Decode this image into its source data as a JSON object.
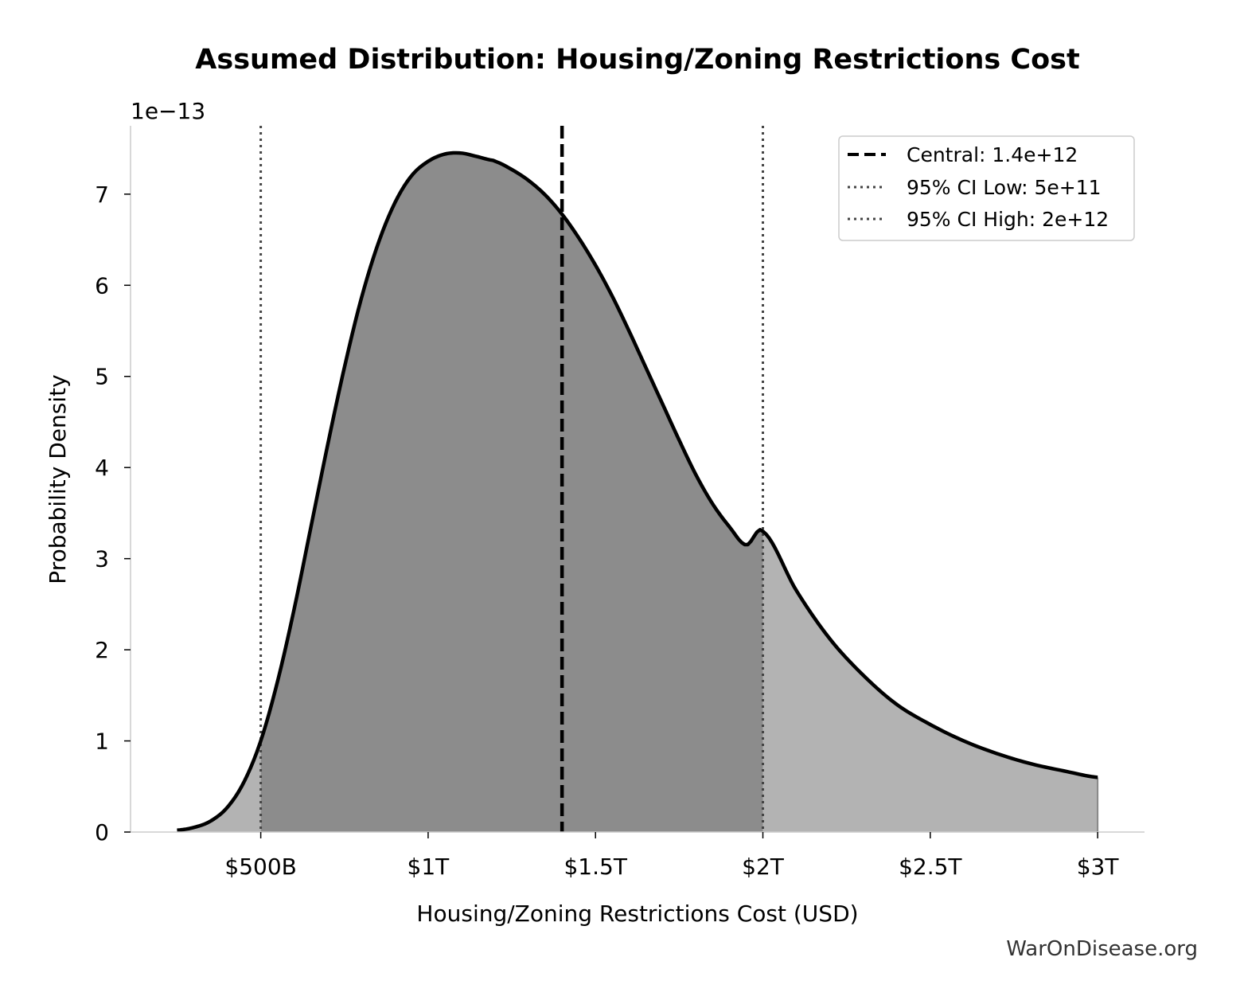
{
  "chart_data": {
    "type": "area",
    "title": "Assumed Distribution: Housing/Zoning Restrictions Cost",
    "xlabel": "Housing/Zoning Restrictions Cost (USD)",
    "ylabel": "Probability Density",
    "y_offset_label": "1e−13",
    "y_scale": 1e-13,
    "xlim": [
      111000000000,
      3140000000000
    ],
    "ylim": [
      0,
      7.75e-13
    ],
    "x_ticks": [
      {
        "value": 500000000000,
        "label": "$500B"
      },
      {
        "value": 1000000000000,
        "label": "$1T"
      },
      {
        "value": 1500000000000,
        "label": "$1.5T"
      },
      {
        "value": 2000000000000,
        "label": "$2T"
      },
      {
        "value": 2500000000000,
        "label": "$2.5T"
      },
      {
        "value": 3000000000000,
        "label": "$3T"
      }
    ],
    "y_ticks": [
      {
        "value": 0,
        "label": "0"
      },
      {
        "value": 1e-13,
        "label": "1"
      },
      {
        "value": 2e-13,
        "label": "2"
      },
      {
        "value": 3e-13,
        "label": "3"
      },
      {
        "value": 4e-13,
        "label": "4"
      },
      {
        "value": 5e-13,
        "label": "5"
      },
      {
        "value": 6e-13,
        "label": "6"
      },
      {
        "value": 7e-13,
        "label": "7"
      }
    ],
    "series": [
      {
        "x": [
          250000000000,
          300000000000,
          350000000000,
          400000000000,
          450000000000,
          500000000000,
          550000000000,
          600000000000,
          650000000000,
          700000000000,
          750000000000,
          800000000000,
          850000000000,
          900000000000,
          950000000000,
          1000000000000,
          1050000000000,
          1100000000000,
          1150000000000,
          1180000000000,
          1200000000000,
          1250000000000,
          1300000000000,
          1350000000000,
          1400000000000,
          1450000000000,
          1500000000000,
          1550000000000,
          1600000000000,
          1650000000000,
          1700000000000,
          1750000000000,
          1800000000000,
          1850000000000,
          1900000000000,
          1950000000000,
          2000000000000,
          2100000000000,
          2200000000000,
          2300000000000,
          2400000000000,
          2500000000000,
          2600000000000,
          2700000000000,
          2800000000000,
          2900000000000,
          3000000000000
        ],
        "y": [
          2e-15,
          5e-15,
          1.2e-14,
          2.7e-14,
          5.5e-14,
          1e-13,
          1.65e-13,
          2.45e-13,
          3.35e-13,
          4.25e-13,
          5.1e-13,
          5.85e-13,
          6.45e-13,
          6.9e-13,
          7.2e-13,
          7.36e-13,
          7.44e-13,
          7.45e-13,
          7.41e-13,
          7.38e-13,
          7.36e-13,
          7.27e-13,
          7.15e-13,
          6.99e-13,
          6.78e-13,
          6.52e-13,
          6.22e-13,
          5.88e-13,
          5.5e-13,
          5.1e-13,
          4.7e-13,
          4.3e-13,
          3.92e-13,
          3.6e-13,
          3.35e-13,
          3.15e-13,
          3.3e-13,
          2.65e-13,
          2.12e-13,
          1.72e-13,
          1.4e-13,
          1.18e-13,
          1e-13,
          8.6e-14,
          7.5e-14,
          6.7e-14,
          6e-14
        ]
      }
    ],
    "central": 1400000000000,
    "ci_low": 500000000000,
    "ci_high": 2000000000000,
    "legend": {
      "position": "top-right",
      "entries": [
        {
          "label": "Central: 1.4e+12",
          "style": "dashed"
        },
        {
          "label": "95% CI Low: 5e+11",
          "style": "dotted"
        },
        {
          "label": "95% CI High: 2e+12",
          "style": "dotted"
        }
      ]
    },
    "colors": {
      "curve": "#000000",
      "ci_fill": "#8c8c8c",
      "tail_fill": "#b3b3b3",
      "central_line": "#000000",
      "ci_lines": "#444444"
    },
    "grid": false
  },
  "watermark": "WarOnDisease.org"
}
